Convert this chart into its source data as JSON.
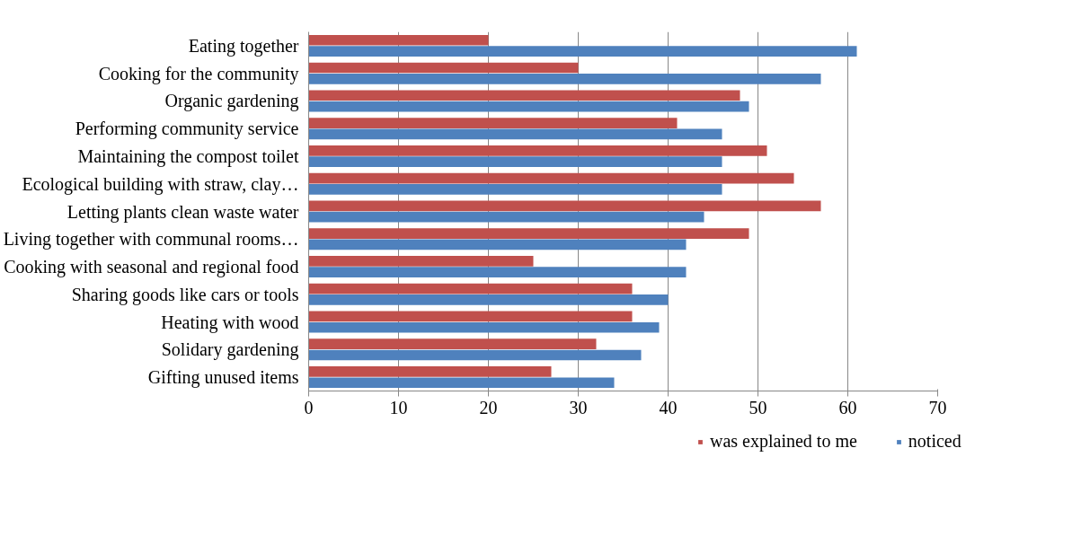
{
  "chart_data": {
    "type": "bar",
    "orientation": "horizontal",
    "categories": [
      "Eating together",
      "Cooking for the community",
      "Organic gardening",
      "Performing community service",
      "Maintaining the compost toilet",
      "Ecological building with straw, clay…",
      "Letting plants clean waste water",
      "Living together with communal rooms…",
      "Cooking with seasonal and regional food",
      "Sharing goods like cars or tools",
      "Heating with wood",
      "Solidary gardening",
      "Gifting unused items"
    ],
    "series": [
      {
        "name": "was explained to me",
        "color": "#c0504d",
        "values": [
          20,
          30,
          48,
          41,
          51,
          54,
          57,
          49,
          25,
          36,
          36,
          32,
          27
        ]
      },
      {
        "name": "noticed",
        "color": "#4f81bd",
        "values": [
          61,
          57,
          49,
          46,
          46,
          46,
          44,
          42,
          42,
          40,
          39,
          37,
          34
        ]
      }
    ],
    "xlim": [
      0,
      70
    ],
    "xticks": [
      0,
      10,
      20,
      30,
      40,
      50,
      60,
      70
    ],
    "grid": "x",
    "legend": "bottom"
  }
}
